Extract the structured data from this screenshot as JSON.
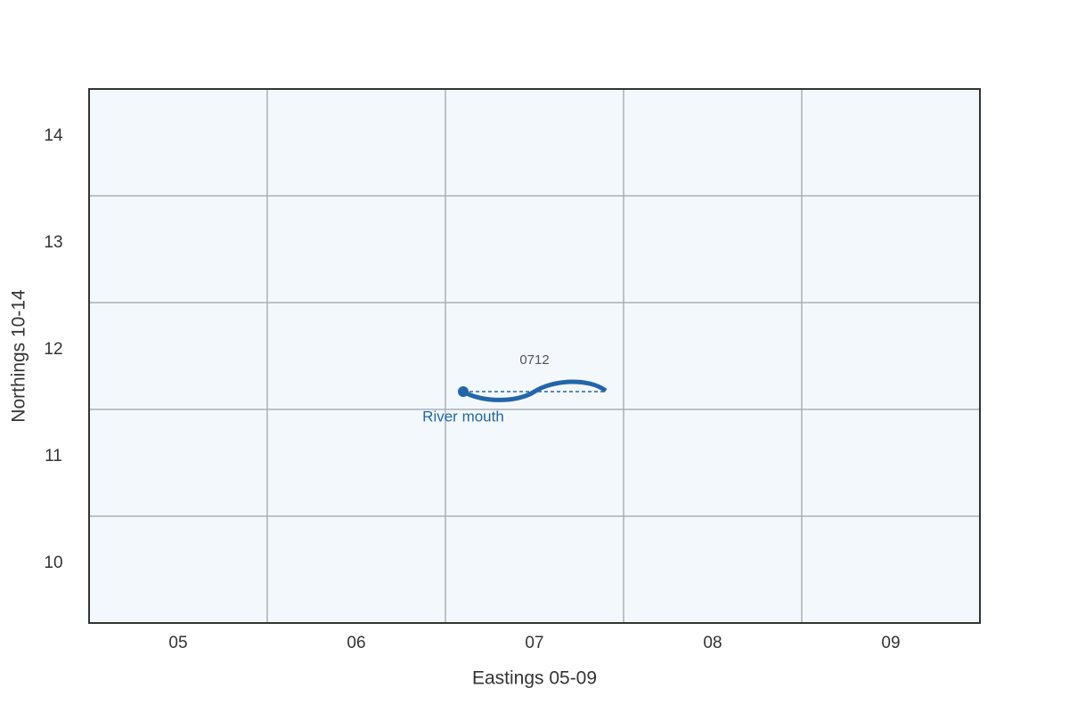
{
  "map": {
    "x_axis_label": "Eastings 05-09",
    "y_axis_label": "Northings 10-14",
    "eastings": [
      "05",
      "06",
      "07",
      "08",
      "09"
    ],
    "northings": [
      "14",
      "13",
      "12",
      "11",
      "10"
    ],
    "grid_square_label": "0712",
    "feature_label": "River mouth"
  }
}
